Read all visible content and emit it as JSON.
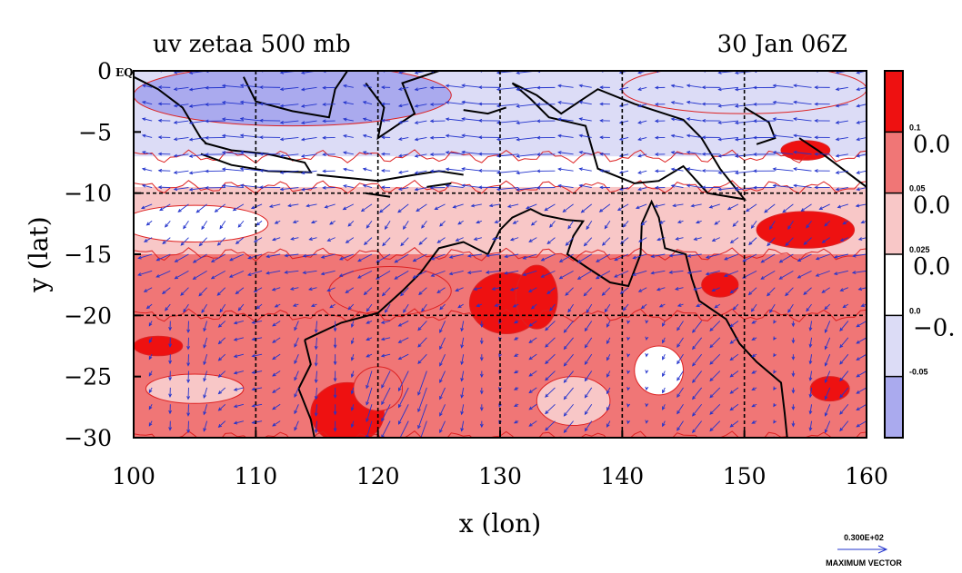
{
  "chart_data": {
    "type": "heatmap",
    "title_left": "uv zetaa 500 mb",
    "title_right": "30 Jan 06Z",
    "xlabel": "x (lon)",
    "ylabel": "y (lat)",
    "xlim": [
      100,
      160
    ],
    "ylim": [
      -30,
      0
    ],
    "x_ticks": [
      100,
      110,
      120,
      130,
      140,
      150,
      160
    ],
    "y_ticks": [
      0,
      -5,
      -10,
      -15,
      -20,
      -25,
      -30
    ],
    "x_tick_labels": [
      "100",
      "110",
      "120",
      "130",
      "140",
      "150",
      "160"
    ],
    "y_tick_labels": [
      "0",
      "−5",
      "−10",
      "−15",
      "−20",
      "−25",
      "−30"
    ],
    "y_top_suffix": "EQ",
    "grid": true,
    "gridlines_x": [
      110,
      120,
      130,
      140,
      150
    ],
    "gridlines_y": [
      -10,
      -20
    ],
    "colorbar": {
      "labels_small": [
        "0.1",
        "0.05",
        "0.025",
        "0.0",
        "-0.05"
      ],
      "labels_large": [
        "0.0",
        "0.0",
        "0.0",
        "−0."
      ],
      "colors": [
        "#ee1111",
        "#f07676",
        "#f8c7c7",
        "#ffffff",
        "#dcdcf6",
        "#aaaaee"
      ]
    },
    "zonal_bands": [
      {
        "lat_top": 0,
        "lat_bottom": -7,
        "level": 4
      },
      {
        "lat_top": -7,
        "lat_bottom": -9.5,
        "level": 3
      },
      {
        "lat_top": -9.5,
        "lat_bottom": -15,
        "level": 2
      },
      {
        "lat_top": -15,
        "lat_bottom": -20,
        "level": 1
      },
      {
        "lat_top": -20,
        "lat_bottom": -30,
        "level": 1
      }
    ],
    "features": [
      {
        "lon": 113,
        "lat": -2,
        "rlon": 13,
        "rlat": 2.5,
        "level": 5
      },
      {
        "lon": 150,
        "lat": -1.5,
        "rlon": 10,
        "rlat": 2,
        "level": 4
      },
      {
        "lon": 105,
        "lat": -12.5,
        "rlon": 6,
        "rlat": 1.5,
        "level": 3
      },
      {
        "lon": 130.5,
        "lat": -19,
        "rlon": 3,
        "rlat": 2.5,
        "level": 0
      },
      {
        "lon": 133,
        "lat": -18.5,
        "rlon": 1.7,
        "rlat": 2.6,
        "level": 0
      },
      {
        "lon": 121,
        "lat": -18,
        "rlon": 5,
        "rlat": 2,
        "level": 1
      },
      {
        "lon": 117.5,
        "lat": -28,
        "rlon": 3,
        "rlat": 2.5,
        "level": 0
      },
      {
        "lon": 120,
        "lat": -26,
        "rlon": 2,
        "rlat": 1.8,
        "level": 1
      },
      {
        "lon": 143,
        "lat": -24.5,
        "rlon": 2,
        "rlat": 2,
        "level": 3
      },
      {
        "lon": 157,
        "lat": -26,
        "rlon": 1.6,
        "rlat": 1,
        "level": 0
      },
      {
        "lon": 148,
        "lat": -17.5,
        "rlon": 1.5,
        "rlat": 1,
        "level": 0
      },
      {
        "lon": 102,
        "lat": -22.5,
        "rlon": 2,
        "rlat": 0.8,
        "level": 0
      },
      {
        "lon": 155,
        "lat": -13,
        "rlon": 4,
        "rlat": 1.5,
        "level": 0
      },
      {
        "lon": 155,
        "lat": -6.5,
        "rlon": 2,
        "rlat": 0.8,
        "level": 0
      },
      {
        "lon": 136,
        "lat": -27,
        "rlon": 3,
        "rlat": 2,
        "level": 2
      },
      {
        "lon": 105,
        "lat": -26,
        "rlon": 4,
        "rlat": 1.2,
        "level": 2
      }
    ],
    "vector_field": {
      "nlon": 40,
      "nlat": 22,
      "reference_magnitude": 30
    }
  },
  "legend": {
    "max_vector_value": "0.300E+02",
    "max_vector_label": "MAXIMUM VECTOR"
  }
}
